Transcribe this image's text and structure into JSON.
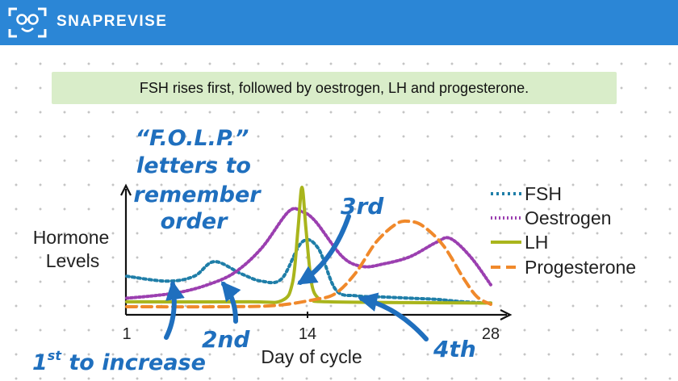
{
  "header": {
    "brand": "SNAPREVISE"
  },
  "banner": {
    "text": "FSH rises first, followed by oestrogen, LH and progesterone."
  },
  "chart_data": {
    "type": "line",
    "xlabel": "Day of cycle",
    "ylabel_line1": "Hormone",
    "ylabel_line2": "Levels",
    "xlim": [
      1,
      28
    ],
    "ylim": [
      0,
      10
    ],
    "ticks": [
      "1",
      "14",
      "28"
    ],
    "series": [
      {
        "name": "FSH",
        "color": "#1f7ea8",
        "dash": "3,4",
        "width": 4,
        "x": [
          1,
          4,
          6,
          7.5,
          9.5,
          11,
          12.5,
          14,
          15.2,
          16.5,
          18,
          20,
          22,
          24,
          26,
          28
        ],
        "y": [
          2.7,
          2.3,
          2.7,
          3.9,
          2.9,
          2.3,
          2.5,
          5.5,
          5.0,
          1.6,
          1.1,
          1.0,
          0.9,
          0.8,
          0.6,
          0.5
        ]
      },
      {
        "name": "Oestrogen",
        "color": "#9b3fb0",
        "dash": "2,3",
        "width": 4,
        "x": [
          1,
          3,
          5,
          7,
          9,
          11,
          13,
          14,
          15,
          17,
          18.5,
          20,
          22,
          24,
          25,
          26.5,
          28
        ],
        "y": [
          0.9,
          1.1,
          1.4,
          2.0,
          3.0,
          5.0,
          8.0,
          8.0,
          7.2,
          4.3,
          3.5,
          3.7,
          4.3,
          5.5,
          5.8,
          4.3,
          2.0
        ]
      },
      {
        "name": "LH",
        "color": "#a9b51c",
        "dash": "",
        "width": 4,
        "x": [
          1,
          10,
          12.5,
          13.3,
          13.7,
          14,
          14.3,
          14.7,
          15.2,
          16,
          28
        ],
        "y": [
          0.6,
          0.6,
          0.7,
          2.2,
          6.5,
          10.0,
          6.5,
          2.2,
          0.9,
          0.6,
          0.5
        ]
      },
      {
        "name": "Progesterone",
        "color": "#f0892b",
        "dash": "12,7",
        "width": 4,
        "x": [
          1,
          8,
          12,
          15,
          16.5,
          18,
          19.5,
          21,
          22,
          23,
          24.5,
          26,
          27,
          28
        ],
        "y": [
          0.2,
          0.2,
          0.3,
          0.8,
          1.3,
          3.0,
          5.5,
          7.0,
          7.2,
          6.8,
          5.2,
          2.5,
          1.0,
          0.4
        ]
      }
    ]
  },
  "annotations": {
    "mnemonic": [
      "“F.O.L.P.”",
      "letters to",
      "remember",
      "order"
    ],
    "first_base": "1",
    "first_sup": "st",
    "first_rest": " to increase",
    "second": "2nd",
    "third": "3rd",
    "fourth": "4th",
    "accent_color": "#1f6fbe"
  }
}
